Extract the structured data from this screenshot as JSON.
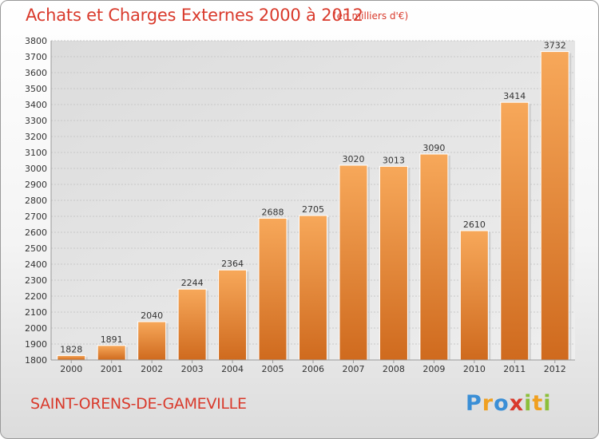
{
  "title": "Achats et Charges Externes 2000 à 2012",
  "subtitle": "(en milliers d'€)",
  "commune": "SAINT-ORENS-DE-GAMEVILLE",
  "logo": {
    "text": "Proxiti",
    "letters": [
      {
        "ch": "P",
        "color": "#3b8fd6"
      },
      {
        "ch": "r",
        "color": "#f0a020"
      },
      {
        "ch": "o",
        "color": "#3b8fd6"
      },
      {
        "ch": "x",
        "color": "#d93a2c"
      },
      {
        "ch": "i",
        "color": "#8cbf3a"
      },
      {
        "ch": "t",
        "color": "#f0a020"
      },
      {
        "ch": "i",
        "color": "#8cbf3a"
      }
    ]
  },
  "colors": {
    "text_accent": "#d93a2c",
    "bar_top": "#f7a85a",
    "bar_bottom": "#cf6a1e",
    "grid": "#cccccc"
  },
  "chart_data": {
    "type": "bar",
    "title": "Achats et Charges Externes 2000 à 2012",
    "subtitle": "(en milliers d'€)",
    "categories": [
      "2000",
      "2001",
      "2002",
      "2003",
      "2004",
      "2005",
      "2006",
      "2007",
      "2008",
      "2009",
      "2010",
      "2011",
      "2012"
    ],
    "values": [
      1828,
      1891,
      2040,
      2244,
      2364,
      2688,
      2705,
      3020,
      3013,
      3090,
      2610,
      3414,
      3732
    ],
    "data_labels": [
      "1828",
      "1891",
      "2040",
      "2244",
      "2364",
      "2688",
      "2705",
      "3020",
      "3013",
      "3090",
      "2610",
      "3414",
      "3732"
    ],
    "ylim": [
      1800,
      3800
    ],
    "yticks": [
      "1800",
      "1900",
      "2000",
      "2100",
      "2200",
      "2300",
      "2400",
      "2500",
      "2600",
      "2700",
      "2800",
      "2900",
      "3000",
      "3100",
      "3200",
      "3300",
      "3400",
      "3500",
      "3600",
      "3700",
      "3800"
    ],
    "grid": true,
    "legend": "none"
  }
}
